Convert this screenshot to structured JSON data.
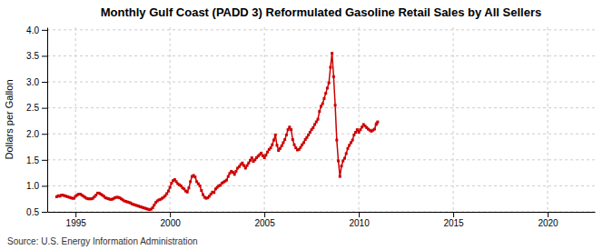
{
  "chart_data": {
    "type": "line",
    "title": "Monthly Gulf Coast (PADD 3) Reformulated Gasoline Retail Sales by All Sellers",
    "ylabel": "Dollars per Gallon",
    "annotations": [
      "Source: U.S. Energy Information Administration"
    ],
    "color": "#CC0000",
    "marker": "square",
    "line_style": "solid",
    "grid": true,
    "xlim": [
      1993.5,
      2022.5
    ],
    "ylim": [
      0.5,
      4.05
    ],
    "xticks": [
      1995,
      2000,
      2005,
      2010,
      2015,
      2020
    ],
    "yticks": [
      0.5,
      {
        "value": 1.0,
        "label": "1.0"
      },
      1.5,
      {
        "value": 2.0,
        "label": "2.0"
      },
      2.5,
      {
        "value": 3.0,
        "label": "3.0"
      },
      3.5,
      {
        "value": 4.0,
        "label": "4.0"
      }
    ],
    "x": [
      1994.0,
      1994.083,
      1994.167,
      1994.25,
      1994.333,
      1994.417,
      1994.5,
      1994.583,
      1994.667,
      1994.75,
      1994.833,
      1994.917,
      1995.0,
      1995.083,
      1995.167,
      1995.25,
      1995.333,
      1995.417,
      1995.5,
      1995.583,
      1995.667,
      1995.75,
      1995.833,
      1995.917,
      1996.0,
      1996.083,
      1996.167,
      1996.25,
      1996.333,
      1996.417,
      1996.5,
      1996.583,
      1996.667,
      1996.75,
      1996.833,
      1996.917,
      1997.0,
      1997.083,
      1997.167,
      1997.25,
      1997.333,
      1997.417,
      1997.5,
      1997.583,
      1997.667,
      1997.75,
      1997.833,
      1997.917,
      1998.0,
      1998.083,
      1998.167,
      1998.25,
      1998.333,
      1998.417,
      1998.5,
      1998.583,
      1998.667,
      1998.75,
      1998.833,
      1998.917,
      1999.0,
      1999.083,
      1999.167,
      1999.25,
      1999.333,
      1999.417,
      1999.5,
      1999.583,
      1999.667,
      1999.75,
      1999.833,
      1999.917,
      2000.0,
      2000.083,
      2000.167,
      2000.25,
      2000.333,
      2000.417,
      2000.5,
      2000.583,
      2000.667,
      2000.75,
      2000.833,
      2000.917,
      2001.0,
      2001.083,
      2001.167,
      2001.25,
      2001.333,
      2001.417,
      2001.5,
      2001.583,
      2001.667,
      2001.75,
      2001.833,
      2001.917,
      2002.0,
      2002.083,
      2002.167,
      2002.25,
      2002.333,
      2002.417,
      2002.5,
      2002.583,
      2002.667,
      2002.75,
      2002.833,
      2002.917,
      2003.0,
      2003.083,
      2003.167,
      2003.25,
      2003.333,
      2003.417,
      2003.5,
      2003.583,
      2003.667,
      2003.75,
      2003.833,
      2003.917,
      2004.0,
      2004.083,
      2004.167,
      2004.25,
      2004.333,
      2004.417,
      2004.5,
      2004.583,
      2004.667,
      2004.75,
      2004.833,
      2004.917,
      2005.0,
      2005.083,
      2005.167,
      2005.25,
      2005.333,
      2005.417,
      2005.5,
      2005.583,
      2005.667,
      2005.75,
      2005.833,
      2005.917,
      2006.0,
      2006.083,
      2006.167,
      2006.25,
      2006.333,
      2006.417,
      2006.5,
      2006.583,
      2006.667,
      2006.75,
      2006.833,
      2006.917,
      2007.0,
      2007.083,
      2007.167,
      2007.25,
      2007.333,
      2007.417,
      2007.5,
      2007.583,
      2007.667,
      2007.75,
      2007.833,
      2007.917,
      2008.0,
      2008.083,
      2008.167,
      2008.25,
      2008.333,
      2008.417,
      2008.5,
      2008.583,
      2008.667,
      2008.75,
      2008.833,
      2008.917,
      2009.0,
      2009.083,
      2009.167,
      2009.25,
      2009.333,
      2009.417,
      2009.5,
      2009.583,
      2009.667,
      2009.75,
      2009.833,
      2009.917,
      2010.0,
      2010.083,
      2010.167,
      2010.25,
      2010.333,
      2010.417,
      2010.5,
      2010.583,
      2010.667,
      2010.75,
      2010.833,
      2010.917,
      2010.95,
      2011.0
    ],
    "values": [
      0.79,
      0.81,
      0.8,
      0.82,
      0.82,
      0.81,
      0.8,
      0.79,
      0.78,
      0.77,
      0.76,
      0.76,
      0.8,
      0.82,
      0.84,
      0.84,
      0.82,
      0.8,
      0.78,
      0.76,
      0.75,
      0.75,
      0.75,
      0.76,
      0.79,
      0.82,
      0.86,
      0.86,
      0.84,
      0.82,
      0.8,
      0.77,
      0.76,
      0.75,
      0.74,
      0.74,
      0.75,
      0.77,
      0.78,
      0.78,
      0.77,
      0.75,
      0.73,
      0.71,
      0.7,
      0.69,
      0.68,
      0.67,
      0.65,
      0.64,
      0.63,
      0.62,
      0.61,
      0.6,
      0.59,
      0.58,
      0.57,
      0.56,
      0.55,
      0.54,
      0.55,
      0.58,
      0.63,
      0.68,
      0.71,
      0.73,
      0.74,
      0.76,
      0.78,
      0.81,
      0.85,
      0.9,
      0.97,
      1.05,
      1.1,
      1.12,
      1.08,
      1.04,
      1.02,
      1.0,
      0.96,
      0.94,
      0.9,
      0.88,
      0.96,
      1.08,
      1.18,
      1.2,
      1.17,
      1.08,
      1.04,
      1.0,
      0.91,
      0.83,
      0.78,
      0.76,
      0.77,
      0.8,
      0.84,
      0.88,
      0.87,
      0.94,
      0.97,
      1.0,
      1.01,
      1.05,
      1.07,
      1.09,
      1.11,
      1.18,
      1.24,
      1.28,
      1.26,
      1.22,
      1.28,
      1.34,
      1.37,
      1.41,
      1.44,
      1.39,
      1.34,
      1.39,
      1.44,
      1.49,
      1.54,
      1.47,
      1.5,
      1.54,
      1.57,
      1.6,
      1.63,
      1.58,
      1.54,
      1.59,
      1.65,
      1.7,
      1.73,
      1.79,
      1.88,
      1.98,
      1.78,
      1.68,
      1.72,
      1.77,
      1.83,
      1.89,
      1.98,
      2.08,
      2.13,
      2.08,
      1.89,
      1.79,
      1.73,
      1.69,
      1.7,
      1.74,
      1.79,
      1.83,
      1.89,
      1.93,
      1.98,
      2.03,
      2.08,
      2.12,
      2.18,
      2.23,
      2.28,
      2.43,
      2.53,
      2.58,
      2.68,
      2.78,
      2.88,
      2.98,
      3.28,
      3.55,
      3.1,
      2.55,
      1.88,
      1.48,
      1.18,
      1.38,
      1.48,
      1.53,
      1.62,
      1.72,
      1.78,
      1.83,
      1.88,
      1.98,
      2.03,
      2.08,
      2.03,
      2.08,
      2.13,
      2.18,
      2.15,
      2.12,
      2.09,
      2.07,
      2.05,
      2.07,
      2.09,
      2.18,
      2.2,
      2.23
    ]
  }
}
